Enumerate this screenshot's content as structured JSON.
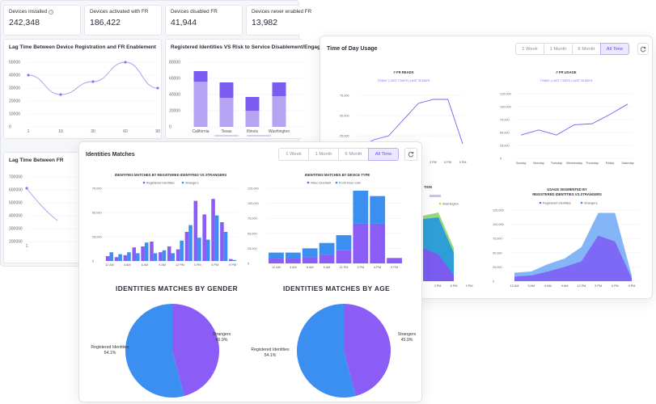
{
  "stats": [
    {
      "label": "Devices installed",
      "value": "242,348",
      "info": true
    },
    {
      "label": "Devices activated with FR",
      "value": "186,422"
    },
    {
      "label": "Devices disabled FR",
      "value": "41,944"
    },
    {
      "label": "Devices never enabled FR",
      "value": "13,982"
    }
  ],
  "back": {
    "lag_title": "Lag Time Between Device Registration and FR Enablement",
    "reg_title": "Registered Identities VS Risk to Service Disablement/Engagement",
    "lag2_title": "Lag Time Between FR"
  },
  "tod": {
    "title": "Time of Day Usage",
    "ranges": [
      "1 Week",
      "1 Month",
      "6 Month",
      "All Time"
    ],
    "active_range": "All Time",
    "fr_reads_title": "# FR READS",
    "fr_reads_sub": "TODAY | LAST 7 DAYS | LAST 30 DAYS",
    "fr_usage_title": "# FR USAGE",
    "fr_usage_sub": "TODAY | LAST 7 DAYS | LAST 30 DAYS",
    "seg_title_1": "USAGE SEGMENTED BY",
    "seg_title_2": "REGISTERED IDENTITIES VS.STRANGERS",
    "legend_ri": "Registered Identities",
    "legend_st": "Strangers",
    "frag_title": "TION",
    "frag_wash": "Washington"
  },
  "idm": {
    "title": "Identities Matches",
    "ranges": [
      "1 Week",
      "1 Month",
      "6 Month",
      "All Time"
    ],
    "active_range": "All Time",
    "chart1_title": "IDENTITIES MATCHES BY REGISTERED IDENTITIES VS STRANGERS",
    "chart2_title": "IDENTITIES MATCHES BY DEVICE TYPE",
    "legend_ri": "Registered Identities",
    "legend_st": "Strangers",
    "legend_vd": "Video Doorbell",
    "legend_fd": "Front Door Cam",
    "gender_title": "IDENTITIES MATCHES BY GENDER",
    "age_title": "IDENTITIES MATCHES BY AGE",
    "gender_labels": {
      "strangers": "Strangers",
      "strangers_pct": "45.9%",
      "registered": "Registered Identities",
      "registered_pct": "54.1%"
    },
    "age_labels": {
      "strangers": "Strangers",
      "strangers_pct": "45.9%",
      "registered": "Registered Identities",
      "registered_pct": "54.1%"
    }
  },
  "colors": {
    "purple": "#8b5cf6",
    "blue": "#3b8ff0",
    "light_purple": "#b8a8f5",
    "accent": "#6a4bff"
  },
  "chart_data": [
    {
      "type": "line",
      "title": "Lag Time Between Device Registration and FR Enablement",
      "x": [
        1,
        10,
        30,
        60,
        90
      ],
      "xticks": [
        "1",
        "10",
        "30",
        "60",
        "90"
      ],
      "y": [
        40000,
        25000,
        35000,
        50000,
        30000
      ],
      "yticks": [
        "50000",
        "40000",
        "30000",
        "20000",
        "10000",
        "0"
      ],
      "ylim": [
        0,
        50000
      ]
    },
    {
      "type": "bar",
      "title": "Registered Identities VS Risk to Service Disablement/Engagement",
      "categories": [
        "California",
        "Texas",
        "Illinois",
        "Washington"
      ],
      "series": [
        {
          "values": [
            56000,
            36000,
            20000,
            38000
          ]
        },
        {
          "values": [
            13000,
            19000,
            17000,
            17000
          ]
        }
      ],
      "yticks": [
        "80000",
        "60000",
        "40000",
        "20000",
        "0"
      ],
      "ylim": [
        0,
        80000
      ]
    },
    {
      "type": "line",
      "title": "Lag Time Between FR",
      "x": [
        1
      ],
      "y": [
        600000
      ],
      "yticks": [
        "700000",
        "600000",
        "500000",
        "400000",
        "300000",
        "200000"
      ],
      "ylim": [
        200000,
        700000
      ]
    },
    {
      "type": "line",
      "title": "# FR READS",
      "x": [
        "12 AM",
        "3 AM",
        "6 AM",
        "9 AM",
        "12 PM",
        "3 PM",
        "6 PM",
        "9 PM"
      ],
      "y": [
        10000,
        20000,
        25000,
        45000,
        65000,
        70000,
        70000,
        15000
      ],
      "yticks": [
        "75,000",
        "50,000",
        "25,000"
      ],
      "xticks": [
        "3 PM",
        "6 PM",
        "9 PM"
      ],
      "ylim": [
        0,
        80000
      ]
    },
    {
      "type": "line",
      "title": "# FR USAGE",
      "x": [
        "Sunday",
        "Monday",
        "Tuesday",
        "Wednesday",
        "Thursday",
        "Friday",
        "Saturday"
      ],
      "y": [
        45000,
        55000,
        45000,
        65000,
        67000,
        85000,
        105000
      ],
      "yticks": [
        "125,000",
        "100,000",
        "75,000",
        "50,000",
        "25,000",
        "0"
      ],
      "ylim": [
        0,
        125000
      ]
    },
    {
      "type": "area",
      "title": "USAGE SEGMENTED BY REGISTERED IDENTITIES VS.STRANGERS",
      "x": [
        "12 AM",
        "3 AM",
        "6 AM",
        "9 AM",
        "12 PM",
        "3 PM",
        "6 PM",
        "9 PM"
      ],
      "series": [
        {
          "name": "Registered Identities",
          "values": [
            8000,
            10000,
            17000,
            25000,
            35000,
            80000,
            70000,
            5000
          ]
        },
        {
          "name": "Strangers",
          "values": [
            7000,
            7000,
            13000,
            15000,
            25000,
            40000,
            50000,
            5000
          ]
        }
      ],
      "yticks": [
        "125,000",
        "100,000",
        "75,000",
        "50,000",
        "25,000",
        "0"
      ],
      "ylim": [
        0,
        125000
      ]
    },
    {
      "type": "bar",
      "title": "IDENTITIES MATCHES BY REGISTERED IDENTITIES VS STRANGERS",
      "categories": [
        "12 AM",
        "1",
        "3 AM",
        "4",
        "6 AM",
        "7",
        "9 AM",
        "10",
        "12 PM",
        "13",
        "3 PM",
        "16",
        "6 PM",
        "19",
        "9 PM"
      ],
      "xticks": [
        "12 AM",
        "3 AM",
        "6 AM",
        "9 AM",
        "12 PM",
        "3 PM",
        "6 PM",
        "9 PM"
      ],
      "series": [
        {
          "name": "Registered Identities",
          "values": [
            5000,
            4000,
            6000,
            14000,
            15000,
            20000,
            9000,
            15000,
            12000,
            30000,
            62000,
            48000,
            64000,
            40000,
            2000
          ]
        },
        {
          "name": "Strangers",
          "values": [
            9000,
            7000,
            9000,
            8000,
            19000,
            8000,
            11000,
            8000,
            21000,
            37000,
            24000,
            22000,
            47000,
            30000,
            1000
          ]
        }
      ],
      "yticks": [
        "75,000",
        "50,000",
        "25,000",
        "0"
      ],
      "ylim": [
        0,
        75000
      ]
    },
    {
      "type": "bar",
      "title": "IDENTITIES MATCHES BY DEVICE TYPE",
      "categories": [
        "12 AM",
        "3 AM",
        "6 AM",
        "9 AM",
        "12 PM",
        "3 PM",
        "6 PM",
        "9 PM"
      ],
      "series": [
        {
          "name": "Video Doorbell",
          "values": [
            8000,
            8000,
            10000,
            14000,
            22000,
            66000,
            66000,
            9000
          ]
        },
        {
          "name": "Front Door Cam",
          "values": [
            10000,
            10000,
            15000,
            20000,
            25000,
            55000,
            46000,
            0
          ]
        }
      ],
      "yticks": [
        "125,000",
        "100,000",
        "75,000",
        "50,000",
        "25,000",
        "0"
      ],
      "ylim": [
        0,
        125000
      ]
    },
    {
      "type": "pie",
      "title": "IDENTITIES MATCHES BY GENDER",
      "labels": [
        "Strangers",
        "Registered Identities"
      ],
      "values": [
        45.9,
        54.1
      ]
    },
    {
      "type": "pie",
      "title": "IDENTITIES MATCHES BY AGE",
      "labels": [
        "Strangers",
        "Registered Identities"
      ],
      "values": [
        45.9,
        54.1
      ]
    }
  ]
}
